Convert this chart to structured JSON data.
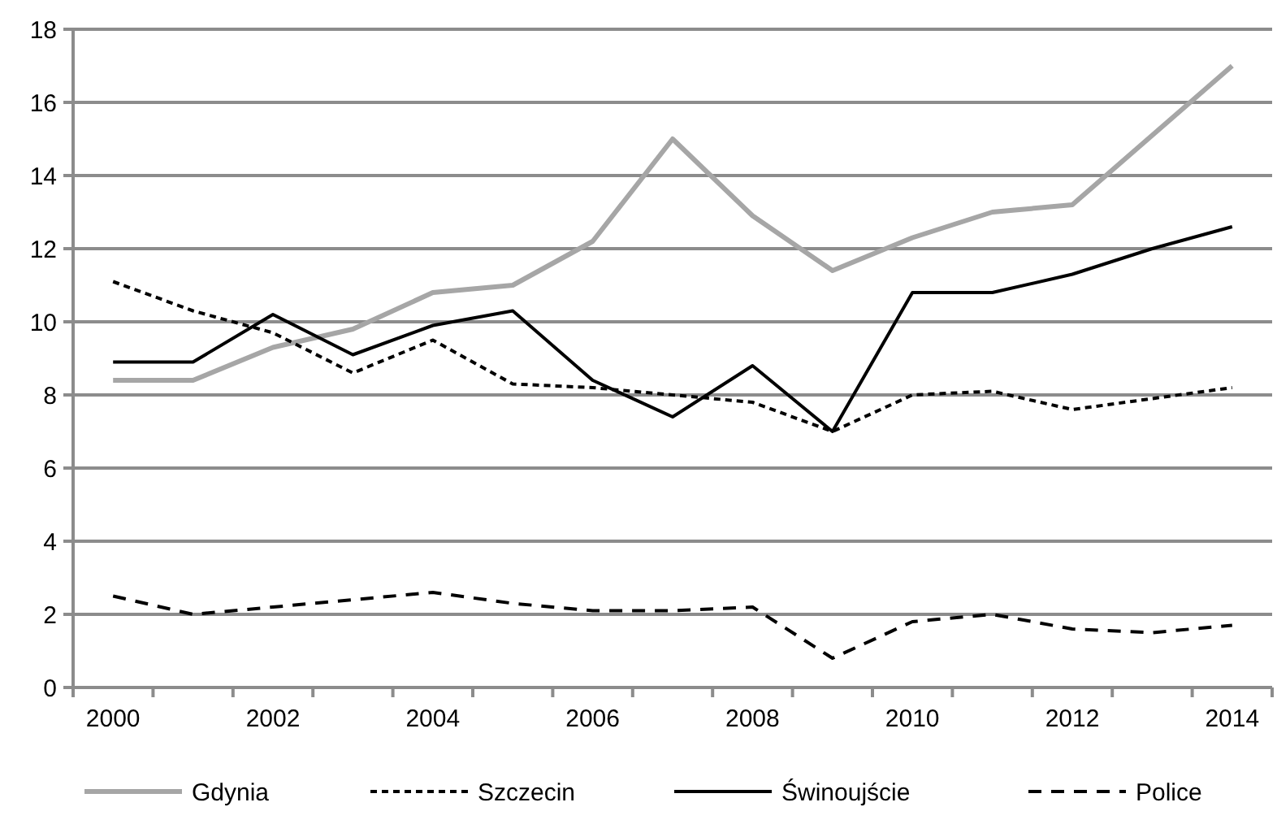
{
  "chart_data": {
    "type": "line",
    "categories": [
      "2000",
      null,
      "2002",
      null,
      "2004",
      null,
      "2006",
      null,
      "2008",
      null,
      "2010",
      null,
      "2012",
      null,
      "2014"
    ],
    "ylim": [
      0,
      18
    ],
    "yticks": [
      0,
      2,
      4,
      6,
      8,
      10,
      12,
      14,
      16,
      18
    ],
    "grid": "y",
    "legend": "bottom",
    "marker": "none",
    "series": [
      {
        "name": "Gdynia",
        "color": "#a6a6a6",
        "line_style": "solid",
        "values": [
          8.4,
          8.4,
          9.3,
          9.8,
          10.8,
          11.0,
          12.2,
          15.0,
          12.9,
          11.4,
          12.3,
          13.0,
          13.2,
          15.1,
          17.0
        ]
      },
      {
        "name": "Szczecin",
        "color": "#000000",
        "line_style": "dotted",
        "values": [
          11.1,
          10.3,
          9.7,
          8.6,
          9.5,
          8.3,
          8.2,
          8.0,
          7.8,
          7.0,
          8.0,
          8.1,
          7.6,
          7.9,
          8.2
        ]
      },
      {
        "name": "Świnoujście",
        "color": "#000000",
        "line_style": "solid",
        "values": [
          8.9,
          8.9,
          10.2,
          9.1,
          9.9,
          10.3,
          8.4,
          7.4,
          8.8,
          7.0,
          10.8,
          10.8,
          11.3,
          12.0,
          12.6
        ]
      },
      {
        "name": "Police",
        "color": "#000000",
        "line_style": "dashed",
        "values": [
          2.5,
          2.0,
          2.2,
          2.4,
          2.6,
          2.3,
          2.1,
          2.1,
          2.2,
          0.8,
          1.8,
          2.0,
          1.6,
          1.5,
          1.7
        ]
      }
    ]
  }
}
